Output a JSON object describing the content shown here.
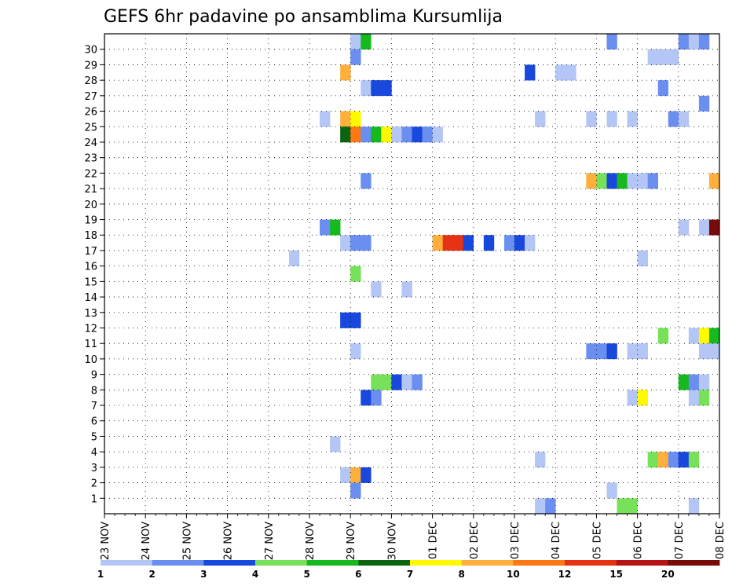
{
  "chart_data": {
    "type": "heatmap",
    "title": "GEFS 6hr padavine po ansamblima Kursumlija",
    "xlabel": "",
    "ylabel": "",
    "x_tick_labels": [
      "23 NOV",
      "24 NOV",
      "25 NOV",
      "26 NOV",
      "27 NOV",
      "28 NOV",
      "29 NOV",
      "30 NOV",
      "01 DEC",
      "02 DEC",
      "03 DEC",
      "04 DEC",
      "05 DEC",
      "06 DEC",
      "07 DEC",
      "08 DEC"
    ],
    "y_tick_labels": [
      "1",
      "2",
      "3",
      "4",
      "5",
      "6",
      "7",
      "8",
      "9",
      "10",
      "11",
      "12",
      "13",
      "14",
      "15",
      "16",
      "17",
      "18",
      "19",
      "20",
      "21",
      "22",
      "23",
      "24",
      "25",
      "26",
      "27",
      "28",
      "29",
      "30"
    ],
    "x_range_steps": [
      0,
      60
    ],
    "steps_per_day": 4,
    "y_range": [
      0,
      30
    ],
    "grid": true,
    "colorbar": {
      "tick_labels": [
        "1",
        "2",
        "3",
        "4",
        "5",
        "6",
        "7",
        "8",
        "10",
        "12",
        "15",
        "20"
      ],
      "colors": [
        "#b4c6f5",
        "#6a8ff0",
        "#1848dc",
        "#78e15a",
        "#16b91e",
        "#0a6410",
        "#fffa00",
        "#ffaf3c",
        "#ff7814",
        "#e63214",
        "#b41414",
        "#780a0a"
      ]
    },
    "legend_placement": "bottom",
    "cells": [
      {
        "step": 24,
        "member": 30,
        "level": 1
      },
      {
        "step": 25,
        "member": 30,
        "level": 5
      },
      {
        "step": 49,
        "member": 30,
        "level": 2
      },
      {
        "step": 56,
        "member": 30,
        "level": 2
      },
      {
        "step": 57,
        "member": 30,
        "level": 1
      },
      {
        "step": 58,
        "member": 30,
        "level": 2
      },
      {
        "step": 24,
        "member": 29,
        "level": 2
      },
      {
        "step": 53,
        "member": 29,
        "level": 1
      },
      {
        "step": 54,
        "member": 29,
        "level": 1
      },
      {
        "step": 55,
        "member": 29,
        "level": 1
      },
      {
        "step": 23,
        "member": 28,
        "level": 8
      },
      {
        "step": 41,
        "member": 28,
        "level": 3
      },
      {
        "step": 44,
        "member": 28,
        "level": 1
      },
      {
        "step": 45,
        "member": 28,
        "level": 1
      },
      {
        "step": 25,
        "member": 27,
        "level": 1
      },
      {
        "step": 26,
        "member": 27,
        "level": 3
      },
      {
        "step": 27,
        "member": 27,
        "level": 3
      },
      {
        "step": 54,
        "member": 27,
        "level": 2
      },
      {
        "step": 58,
        "member": 26,
        "level": 2
      },
      {
        "step": 21,
        "member": 25,
        "level": 1
      },
      {
        "step": 23,
        "member": 25,
        "level": 8
      },
      {
        "step": 24,
        "member": 25,
        "level": 7
      },
      {
        "step": 42,
        "member": 25,
        "level": 1
      },
      {
        "step": 47,
        "member": 25,
        "level": 1
      },
      {
        "step": 49,
        "member": 25,
        "level": 1
      },
      {
        "step": 51,
        "member": 25,
        "level": 1
      },
      {
        "step": 55,
        "member": 25,
        "level": 2
      },
      {
        "step": 56,
        "member": 25,
        "level": 1
      },
      {
        "step": 23,
        "member": 24,
        "level": 6
      },
      {
        "step": 24,
        "member": 24,
        "level": 9
      },
      {
        "step": 25,
        "member": 24,
        "level": 2
      },
      {
        "step": 26,
        "member": 24,
        "level": 5
      },
      {
        "step": 27,
        "member": 24,
        "level": 7
      },
      {
        "step": 28,
        "member": 24,
        "level": 1
      },
      {
        "step": 29,
        "member": 24,
        "level": 2
      },
      {
        "step": 30,
        "member": 24,
        "level": 3
      },
      {
        "step": 31,
        "member": 24,
        "level": 2
      },
      {
        "step": 32,
        "member": 24,
        "level": 1
      },
      {
        "step": 25,
        "member": 21,
        "level": 2
      },
      {
        "step": 47,
        "member": 21,
        "level": 8
      },
      {
        "step": 48,
        "member": 21,
        "level": 4
      },
      {
        "step": 49,
        "member": 21,
        "level": 3
      },
      {
        "step": 50,
        "member": 21,
        "level": 5
      },
      {
        "step": 51,
        "member": 21,
        "level": 1
      },
      {
        "step": 52,
        "member": 21,
        "level": 1
      },
      {
        "step": 53,
        "member": 21,
        "level": 2
      },
      {
        "step": 59,
        "member": 21,
        "level": 8
      },
      {
        "step": 21,
        "member": 18,
        "level": 2
      },
      {
        "step": 22,
        "member": 18,
        "level": 5
      },
      {
        "step": 56,
        "member": 18,
        "level": 1
      },
      {
        "step": 58,
        "member": 18,
        "level": 1
      },
      {
        "step": 59,
        "member": 18,
        "level": 12
      },
      {
        "step": 23,
        "member": 17,
        "level": 1
      },
      {
        "step": 24,
        "member": 17,
        "level": 2
      },
      {
        "step": 25,
        "member": 17,
        "level": 2
      },
      {
        "step": 32,
        "member": 17,
        "level": 8
      },
      {
        "step": 33,
        "member": 17,
        "level": 10
      },
      {
        "step": 34,
        "member": 17,
        "level": 10
      },
      {
        "step": 35,
        "member": 17,
        "level": 3
      },
      {
        "step": 37,
        "member": 17,
        "level": 3
      },
      {
        "step": 39,
        "member": 17,
        "level": 2
      },
      {
        "step": 40,
        "member": 17,
        "level": 3
      },
      {
        "step": 41,
        "member": 17,
        "level": 1
      },
      {
        "step": 18,
        "member": 16,
        "level": 1
      },
      {
        "step": 52,
        "member": 16,
        "level": 1
      },
      {
        "step": 24,
        "member": 15,
        "level": 4
      },
      {
        "step": 26,
        "member": 14,
        "level": 1
      },
      {
        "step": 29,
        "member": 14,
        "level": 1
      },
      {
        "step": 23,
        "member": 12,
        "level": 3
      },
      {
        "step": 24,
        "member": 12,
        "level": 3
      },
      {
        "step": 54,
        "member": 11,
        "level": 4
      },
      {
        "step": 57,
        "member": 11,
        "level": 1
      },
      {
        "step": 58,
        "member": 11,
        "level": 7
      },
      {
        "step": 59,
        "member": 11,
        "level": 5
      },
      {
        "step": 24,
        "member": 10,
        "level": 1
      },
      {
        "step": 47,
        "member": 10,
        "level": 2
      },
      {
        "step": 48,
        "member": 10,
        "level": 2
      },
      {
        "step": 49,
        "member": 10,
        "level": 3
      },
      {
        "step": 51,
        "member": 10,
        "level": 1
      },
      {
        "step": 52,
        "member": 10,
        "level": 1
      },
      {
        "step": 58,
        "member": 10,
        "level": 1
      },
      {
        "step": 59,
        "member": 10,
        "level": 1
      },
      {
        "step": 26,
        "member": 8,
        "level": 4
      },
      {
        "step": 27,
        "member": 8,
        "level": 4
      },
      {
        "step": 28,
        "member": 8,
        "level": 3
      },
      {
        "step": 29,
        "member": 8,
        "level": 1
      },
      {
        "step": 30,
        "member": 8,
        "level": 2
      },
      {
        "step": 56,
        "member": 8,
        "level": 5
      },
      {
        "step": 57,
        "member": 8,
        "level": 2
      },
      {
        "step": 58,
        "member": 8,
        "level": 1
      },
      {
        "step": 25,
        "member": 7,
        "level": 3
      },
      {
        "step": 26,
        "member": 7,
        "level": 2
      },
      {
        "step": 51,
        "member": 7,
        "level": 1
      },
      {
        "step": 52,
        "member": 7,
        "level": 7
      },
      {
        "step": 57,
        "member": 7,
        "level": 1
      },
      {
        "step": 58,
        "member": 7,
        "level": 4
      },
      {
        "step": 22,
        "member": 4,
        "level": 1
      },
      {
        "step": 42,
        "member": 3,
        "level": 1
      },
      {
        "step": 53,
        "member": 3,
        "level": 4
      },
      {
        "step": 54,
        "member": 3,
        "level": 8
      },
      {
        "step": 55,
        "member": 3,
        "level": 2
      },
      {
        "step": 56,
        "member": 3,
        "level": 3
      },
      {
        "step": 57,
        "member": 3,
        "level": 4
      },
      {
        "step": 23,
        "member": 2,
        "level": 1
      },
      {
        "step": 24,
        "member": 2,
        "level": 8
      },
      {
        "step": 25,
        "member": 2,
        "level": 3
      },
      {
        "step": 24,
        "member": 1,
        "level": 2
      },
      {
        "step": 49,
        "member": 1,
        "level": 1
      },
      {
        "step": 42,
        "member": 0,
        "level": 1
      },
      {
        "step": 43,
        "member": 0,
        "level": 2
      },
      {
        "step": 50,
        "member": 0,
        "level": 4
      },
      {
        "step": 51,
        "member": 0,
        "level": 4
      },
      {
        "step": 57,
        "member": 0,
        "level": 1
      }
    ]
  }
}
